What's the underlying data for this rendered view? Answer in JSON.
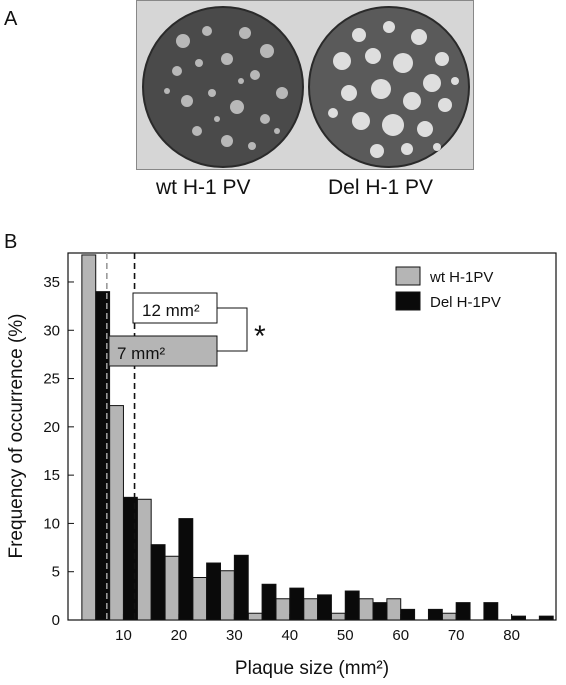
{
  "panel_a": {
    "letter": "A",
    "plates": [
      {
        "label": "wt H-1 PV"
      },
      {
        "label": "Del H-1 PV"
      }
    ]
  },
  "panel_b": {
    "letter": "B"
  },
  "colors": {
    "wt": "#b5b5b5",
    "del": "#0a0a0a",
    "wt_line": "#9a9a9a",
    "del_line": "#111111"
  },
  "chart_data": {
    "type": "bar",
    "xlabel": "Plaque size (mm²)",
    "ylabel": "Frequency of occurrence (%)",
    "xlim": [
      0,
      88
    ],
    "ylim": [
      0,
      38
    ],
    "xticks": [
      10,
      20,
      30,
      40,
      50,
      60,
      70,
      80
    ],
    "yticks": [
      0,
      5,
      10,
      15,
      20,
      25,
      30,
      35
    ],
    "bin_width": 5,
    "x": [
      5,
      10,
      15,
      20,
      25,
      30,
      35,
      40,
      45,
      50,
      55,
      60,
      65,
      70,
      75,
      80,
      85
    ],
    "series": [
      {
        "name": "wt H-1PV",
        "values": [
          37.8,
          22.2,
          12.5,
          6.6,
          4.4,
          5.1,
          0.7,
          2.2,
          2.2,
          0.7,
          2.2,
          2.2,
          0,
          0.7,
          0,
          0,
          0
        ]
      },
      {
        "name": "Del H-1PV",
        "values": [
          34.0,
          12.7,
          7.8,
          10.5,
          5.9,
          6.7,
          3.7,
          3.3,
          2.6,
          3.0,
          1.8,
          1.1,
          1.1,
          1.8,
          1.8,
          0.4,
          0.4
        ]
      }
    ],
    "medians": [
      {
        "series": "wt H-1PV",
        "value": 7,
        "label": "7 mm²"
      },
      {
        "series": "Del H-1PV",
        "value": 12,
        "label": "12 mm²"
      }
    ],
    "significance": "*",
    "legend": "top-right",
    "grid": false
  }
}
